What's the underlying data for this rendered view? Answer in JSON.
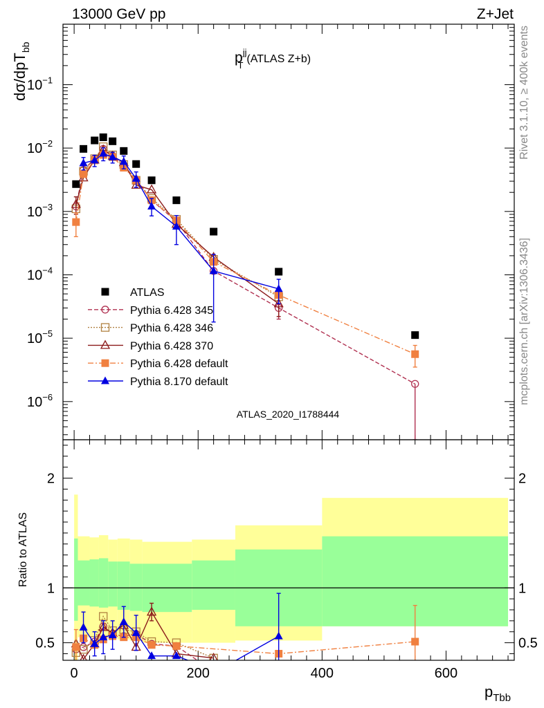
{
  "header": {
    "energy_label": "13000 GeV pp",
    "process_label": "Z+Jet"
  },
  "side_labels": {
    "rivet": "Rivet 3.1.10, ≥ 400k events",
    "mcplots": "mcplots.cern.ch [arXiv:1306.3436]"
  },
  "colors": {
    "ATLAS": "#000000",
    "p345": "#b03050",
    "p346": "#b08040",
    "p370": "#8b1a1a",
    "pdef": "#f08040",
    "p8": "#0000e0",
    "band_outer": "#ffff99",
    "band_inner": "#99ff99"
  },
  "chart_data": [
    {
      "type": "line",
      "title": "p_T^jj (ATLAS Z+b)",
      "title_main": "p",
      "title_sup": "jj",
      "title_sub": "T",
      "title_rest": "(ATLAS Z+b)",
      "ylabel": "dσ/dpT",
      "ylabel_sub": "bb",
      "xlabel": "p",
      "xlabel_sub": "Tbb",
      "watermark": "ATLAS_2020_I1788444",
      "yscale": "log",
      "xlim": [
        -18,
        710
      ],
      "ylim": [
        2.5e-07,
        0.9
      ],
      "x_ticks": [
        0,
        200,
        400,
        600
      ],
      "y_ticks": [
        {
          "v": 1e-06,
          "b": "10",
          "e": "−6"
        },
        {
          "v": 1e-05,
          "b": "10",
          "e": "−5"
        },
        {
          "v": 0.0001,
          "b": "10",
          "e": "−4"
        },
        {
          "v": 0.001,
          "b": "10",
          "e": "−3"
        },
        {
          "v": 0.01,
          "b": "10",
          "e": "−2"
        },
        {
          "v": 0.1,
          "b": "10",
          "e": "−1"
        }
      ],
      "legend_position": "bottom-left",
      "atlas": {
        "name": "ATLAS",
        "x": [
          3,
          15,
          33,
          47,
          62,
          80,
          100,
          125,
          165,
          225,
          330,
          550
        ],
        "y": [
          0.0027,
          0.0097,
          0.0132,
          0.0148,
          0.0128,
          0.009,
          0.0056,
          0.0031,
          0.0015,
          0.00048,
          0.000112,
          1.12e-05
        ]
      },
      "series": [
        {
          "name": "Pythia 6.428 345",
          "key": "p345",
          "marker": "circle-open",
          "dash": "6,3",
          "x": [
            3,
            15,
            33,
            47,
            62,
            80,
            100,
            125,
            165,
            225,
            330,
            550
          ],
          "y": [
            0.0012,
            0.0045,
            0.0068,
            0.0097,
            0.0075,
            0.0052,
            0.0032,
            0.0015,
            0.0007,
            0.000115,
            3e-05,
            1.9e-06
          ],
          "ylo": [
            null,
            null,
            null,
            null,
            null,
            null,
            null,
            null,
            null,
            null,
            2e-05,
            2.5e-07
          ],
          "yhi": [
            null,
            null,
            null,
            null,
            null,
            null,
            null,
            null,
            null,
            null,
            null,
            null
          ]
        },
        {
          "name": "Pythia 6.428 346",
          "key": "p346",
          "marker": "square-open",
          "dash": "2,2",
          "x": [
            3,
            15,
            33,
            47,
            62,
            80,
            100,
            125,
            165,
            225,
            330,
            550
          ],
          "y": [
            0.0011,
            0.0043,
            0.0068,
            0.0105,
            0.0078,
            0.0055,
            0.0031,
            0.0016,
            0.00075,
            0.000175,
            4.5e-05,
            null
          ],
          "ylo": [
            null,
            null,
            null,
            null,
            null,
            null,
            null,
            null,
            null,
            null,
            null,
            null
          ],
          "yhi": [
            null,
            null,
            null,
            null,
            null,
            null,
            null,
            null,
            null,
            null,
            null,
            null
          ]
        },
        {
          "name": "Pythia 6.428 370",
          "key": "p370",
          "marker": "triangle-open",
          "dash": "",
          "x": [
            3,
            15,
            33,
            47,
            62,
            80,
            100,
            125,
            165,
            225,
            330
          ],
          "y": [
            0.0013,
            0.0034,
            0.0065,
            0.0094,
            0.0075,
            0.0059,
            0.0026,
            0.0022,
            0.00063,
            0.00019,
            3.5e-05
          ],
          "ylo": [
            0.0009,
            null,
            null,
            null,
            null,
            null,
            null,
            null,
            null,
            null,
            2.2e-05
          ],
          "yhi": [
            0.0017,
            null,
            null,
            null,
            null,
            null,
            null,
            null,
            null,
            null,
            null
          ]
        },
        {
          "name": "Pythia 6.428 default",
          "key": "pdef",
          "marker": "square-filled",
          "dash": "8,3,2,3",
          "x": [
            3,
            15,
            33,
            47,
            62,
            80,
            100,
            125,
            165,
            225,
            330,
            550
          ],
          "y": [
            0.00068,
            0.0039,
            0.0064,
            0.0078,
            0.0072,
            0.0049,
            0.0031,
            0.0015,
            0.00072,
            0.00016,
            4.8e-05,
            5.6e-06
          ],
          "ylo": [
            0.0004,
            null,
            null,
            null,
            null,
            null,
            null,
            null,
            null,
            null,
            null,
            3.5e-06
          ],
          "yhi": [
            0.00095,
            null,
            null,
            null,
            null,
            null,
            null,
            null,
            null,
            null,
            null,
            7.7e-06
          ]
        },
        {
          "name": "Pythia 8.170 default",
          "key": "p8",
          "marker": "triangle-filled",
          "dash": "",
          "x": [
            3,
            15,
            33,
            47,
            62,
            80,
            100,
            125,
            165,
            225,
            330
          ],
          "y": [
            null,
            0.0058,
            0.0064,
            0.0082,
            0.0072,
            0.0061,
            0.0033,
            0.0012,
            0.00058,
            0.000115,
            6e-05
          ],
          "ylo": [
            null,
            0.0045,
            0.0051,
            0.0063,
            0.0058,
            0.0047,
            0.0024,
            0.00085,
            0.0003,
            1.8e-05,
            3.5e-05
          ],
          "yhi": [
            null,
            0.0071,
            0.0077,
            0.0101,
            0.0086,
            0.0075,
            0.0042,
            0.0016,
            0.00086,
            0.00021,
            8.5e-05
          ]
        }
      ]
    },
    {
      "type": "line",
      "ylabel": "Ratio to ATLAS",
      "yscale": "linear",
      "xlim": [
        -18,
        710
      ],
      "ylim": [
        0.34,
        2.35
      ],
      "x_ticks": [
        0,
        200,
        400,
        600
      ],
      "y_ticks": [
        0.5,
        1,
        2
      ],
      "reference": 1,
      "bands": {
        "edges": [
          0,
          6,
          25,
          40,
          55,
          70,
          90,
          110,
          140,
          190,
          260,
          400,
          700
        ],
        "outer_lo": [
          0.33,
          0.55,
          0.55,
          0.54,
          0.56,
          0.53,
          0.52,
          0.5,
          0.5,
          0.5,
          0.52,
          0.65
        ],
        "outer_hi": [
          1.85,
          1.47,
          1.46,
          1.48,
          1.44,
          1.45,
          1.44,
          1.42,
          1.42,
          1.44,
          1.57,
          1.82
        ],
        "inner_lo": [
          0.7,
          0.84,
          0.83,
          0.82,
          0.83,
          0.8,
          0.79,
          0.78,
          0.78,
          0.8,
          0.65,
          0.65
        ],
        "inner_hi": [
          1.45,
          1.25,
          1.26,
          1.27,
          1.24,
          1.24,
          1.22,
          1.22,
          1.22,
          1.25,
          1.35,
          1.47
        ]
      },
      "series": [
        {
          "name": "Pythia 6.428 345",
          "key": "p345",
          "marker": "circle-open",
          "dash": "6,3",
          "x": [
            3,
            15,
            33,
            47,
            62,
            80,
            100,
            125,
            165,
            225
          ],
          "y": [
            0.44,
            0.46,
            0.51,
            0.65,
            0.58,
            0.56,
            0.58,
            0.49,
            0.47,
            0.24
          ],
          "ylo": [
            null,
            null,
            null,
            null,
            null,
            null,
            null,
            null,
            null,
            null
          ],
          "yhi": [
            null,
            null,
            null,
            null,
            null,
            null,
            null,
            null,
            null,
            null
          ]
        },
        {
          "name": "Pythia 6.428 346",
          "key": "p346",
          "marker": "square-open",
          "dash": "2,2",
          "x": [
            3,
            15,
            33,
            47,
            62,
            80,
            100,
            125,
            165,
            225
          ],
          "y": [
            0.41,
            0.44,
            0.52,
            0.74,
            0.61,
            0.62,
            0.6,
            0.51,
            0.5,
            0.36
          ],
          "ylo": [
            null,
            null,
            null,
            null,
            null,
            null,
            null,
            null,
            null,
            null
          ],
          "yhi": [
            null,
            null,
            null,
            null,
            null,
            null,
            null,
            null,
            null,
            null
          ]
        },
        {
          "name": "Pythia 6.428 370",
          "key": "p370",
          "marker": "triangle-open",
          "dash": "",
          "x": [
            3,
            15,
            33,
            47,
            62,
            80,
            100,
            125,
            165,
            225
          ],
          "y": [
            0.49,
            0.35,
            0.49,
            0.64,
            0.59,
            0.66,
            0.46,
            0.78,
            0.4,
            0.36
          ],
          "ylo": [
            null,
            null,
            null,
            null,
            null,
            null,
            null,
            0.7,
            null,
            null
          ],
          "yhi": [
            null,
            null,
            null,
            null,
            null,
            null,
            null,
            0.86,
            null,
            null
          ]
        },
        {
          "name": "Pythia 6.428 default",
          "key": "pdef",
          "marker": "square-filled",
          "dash": "8,3,2,3",
          "x": [
            3,
            15,
            33,
            47,
            62,
            80,
            100,
            125,
            165,
            330,
            550
          ],
          "y": [
            0.46,
            0.54,
            0.48,
            0.53,
            0.56,
            0.55,
            0.55,
            0.48,
            0.47,
            0.4,
            0.51
          ],
          "ylo": [
            0.3,
            null,
            null,
            null,
            null,
            null,
            null,
            null,
            null,
            null,
            0.26
          ],
          "yhi": [
            0.62,
            null,
            null,
            null,
            null,
            null,
            null,
            null,
            null,
            null,
            0.84
          ]
        },
        {
          "name": "Pythia 8.170 default",
          "key": "p8",
          "marker": "triangle-filled",
          "dash": "",
          "x": [
            15,
            33,
            47,
            62,
            80,
            100,
            125,
            165,
            230,
            330
          ],
          "y": [
            0.64,
            0.49,
            0.55,
            0.57,
            0.69,
            0.59,
            0.38,
            0.38,
            0.24,
            0.56
          ],
          "ylo": [
            0.5,
            0.38,
            0.4,
            0.44,
            0.55,
            0.43,
            null,
            null,
            null,
            0.22
          ],
          "yhi": [
            0.78,
            0.6,
            0.7,
            0.7,
            0.83,
            0.75,
            null,
            null,
            null,
            0.95
          ]
        }
      ]
    }
  ]
}
